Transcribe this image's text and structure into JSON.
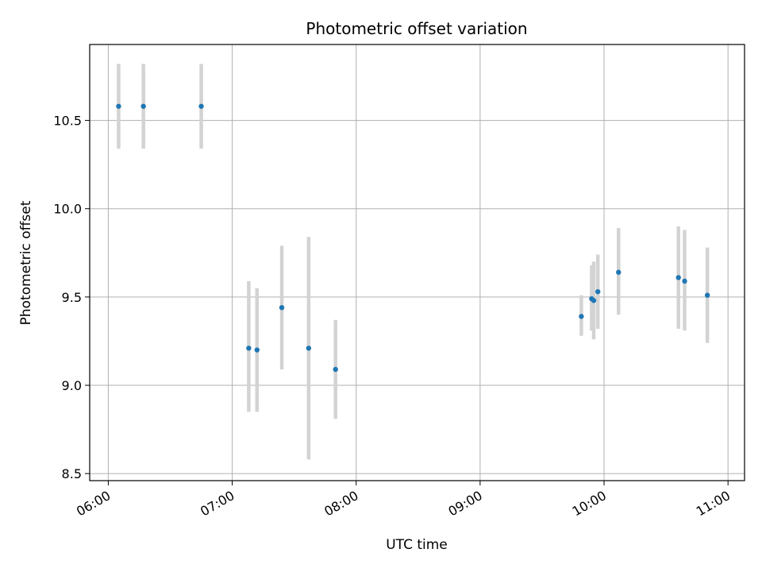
{
  "chart_data": {
    "type": "scatter",
    "title": "Photometric offset variation",
    "xlabel": "UTC time",
    "ylabel": "Photometric offset",
    "x_ticks": [
      "06:00",
      "07:00",
      "08:00",
      "09:00",
      "10:00",
      "11:00"
    ],
    "y_ticks": [
      "8.5",
      "9.0",
      "9.5",
      "10.0",
      "10.5"
    ],
    "xlim": [
      "05:51",
      "11:08"
    ],
    "ylim": [
      8.46,
      10.93
    ],
    "grid": true,
    "marker_color": "#1f77b4",
    "errorbar_color": "#d3d3d3",
    "points": [
      {
        "x": "06:05",
        "y": 10.58,
        "ylo": 10.34,
        "yhi": 10.82
      },
      {
        "x": "06:17",
        "y": 10.58,
        "ylo": 10.34,
        "yhi": 10.82
      },
      {
        "x": "06:45",
        "y": 10.58,
        "ylo": 10.34,
        "yhi": 10.82
      },
      {
        "x": "07:08",
        "y": 9.21,
        "ylo": 8.85,
        "yhi": 9.59
      },
      {
        "x": "07:12",
        "y": 9.2,
        "ylo": 8.85,
        "yhi": 9.55
      },
      {
        "x": "07:24",
        "y": 9.44,
        "ylo": 9.09,
        "yhi": 9.79
      },
      {
        "x": "07:37",
        "y": 9.21,
        "ylo": 8.58,
        "yhi": 9.84
      },
      {
        "x": "07:50",
        "y": 9.09,
        "ylo": 8.81,
        "yhi": 9.37
      },
      {
        "x": "09:49",
        "y": 9.39,
        "ylo": 9.28,
        "yhi": 9.51
      },
      {
        "x": "09:54",
        "y": 9.49,
        "ylo": 9.31,
        "yhi": 9.68
      },
      {
        "x": "09:55",
        "y": 9.48,
        "ylo": 9.26,
        "yhi": 9.7
      },
      {
        "x": "09:57",
        "y": 9.53,
        "ylo": 9.32,
        "yhi": 9.74
      },
      {
        "x": "10:07",
        "y": 9.64,
        "ylo": 9.4,
        "yhi": 9.89
      },
      {
        "x": "10:36",
        "y": 9.61,
        "ylo": 9.32,
        "yhi": 9.9
      },
      {
        "x": "10:39",
        "y": 9.59,
        "ylo": 9.31,
        "yhi": 9.88
      },
      {
        "x": "10:50",
        "y": 9.51,
        "ylo": 9.24,
        "yhi": 9.78
      }
    ]
  }
}
